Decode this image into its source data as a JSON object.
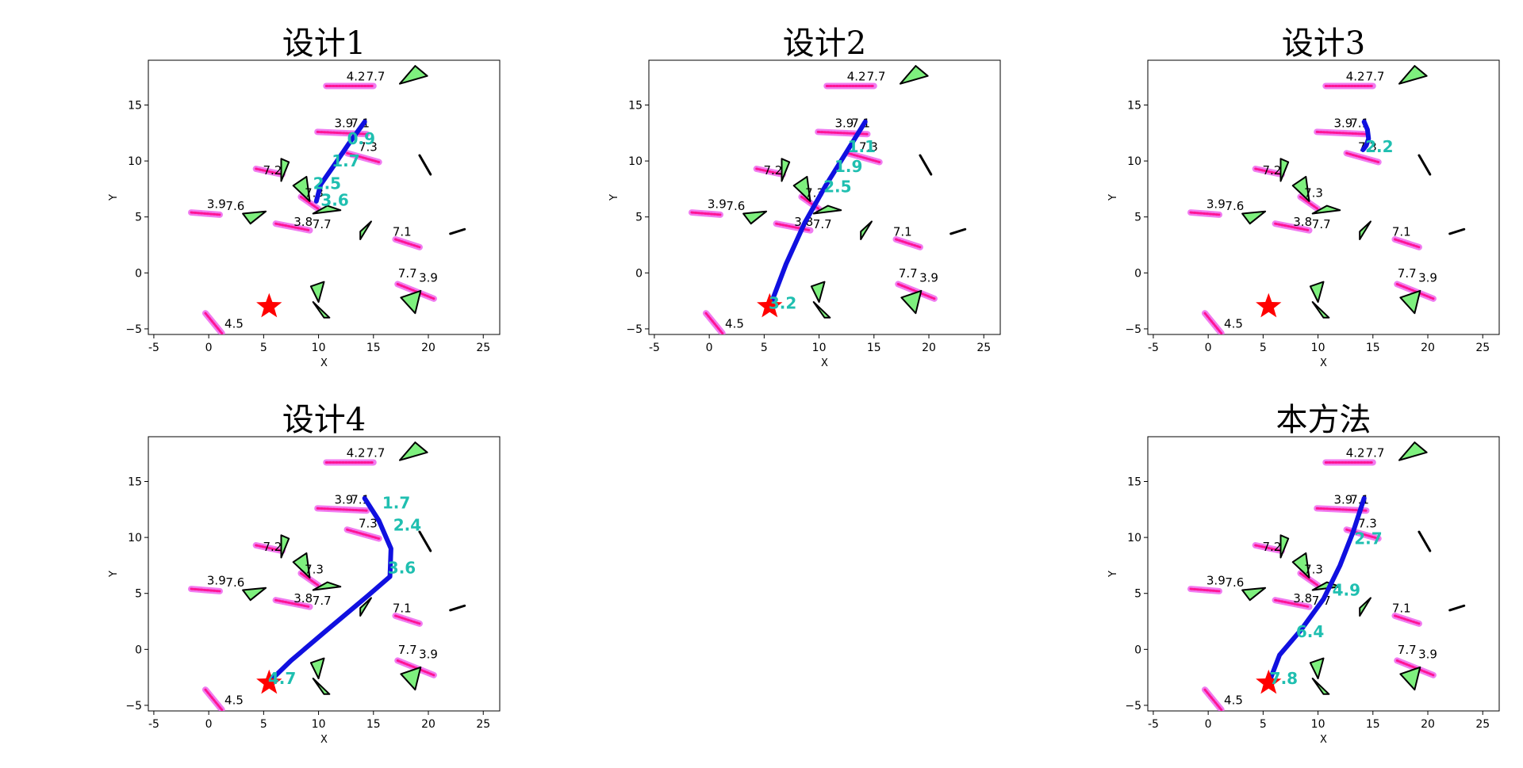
{
  "figure": {
    "panels": [
      {
        "title": "设计1",
        "xlabel": "X",
        "ylabel": "Y"
      },
      {
        "title": "设计2",
        "xlabel": "X",
        "ylabel": "Y"
      },
      {
        "title": "设计3",
        "xlabel": "X",
        "ylabel": "Y"
      },
      {
        "title": "设计4",
        "xlabel": "X",
        "ylabel": "Y"
      },
      {
        "title": "本方法",
        "xlabel": "X",
        "ylabel": "Y"
      }
    ]
  },
  "colors": {
    "trajectory": "#1010e0",
    "goal_star": "#ff0000",
    "obstacle_fill": "#7ef07e",
    "pedestrian_path": "#ff1493",
    "pedestrian_halo": "#ee66ee",
    "speed_label": "#1fbfb0"
  },
  "chart_data": [
    {
      "type": "scatter",
      "title": "设计1",
      "xlabel": "X",
      "ylabel": "Y",
      "xlim": [
        -5.5,
        26.5
      ],
      "ylim": [
        -5.5,
        19.0
      ],
      "xticks": [
        -5,
        0,
        5,
        10,
        15,
        20,
        25
      ],
      "yticks": [
        -5,
        0,
        5,
        10,
        15
      ],
      "goal": [
        5.5,
        -3.0
      ],
      "trajectory": [
        [
          14.2,
          13.5
        ],
        [
          12.8,
          11.6
        ],
        [
          11.4,
          9.6
        ],
        [
          10.2,
          7.9
        ],
        [
          9.8,
          6.4
        ]
      ],
      "speed_labels": [
        {
          "x": 12.6,
          "y": 11.5,
          "text": "0.9"
        },
        {
          "x": 11.2,
          "y": 9.5,
          "text": "1.7"
        },
        {
          "x": 9.5,
          "y": 7.5,
          "text": "2.5"
        },
        {
          "x": 10.2,
          "y": 6.0,
          "text": "3.6"
        }
      ]
    },
    {
      "type": "scatter",
      "title": "设计2",
      "xlabel": "X",
      "ylabel": "Y",
      "xlim": [
        -5.5,
        26.5
      ],
      "ylim": [
        -5.5,
        19.0
      ],
      "xticks": [
        -5,
        0,
        5,
        10,
        15,
        20,
        25
      ],
      "yticks": [
        -5,
        0,
        5,
        10,
        15
      ],
      "goal": [
        5.5,
        -3.0
      ],
      "trajectory": [
        [
          14.2,
          13.5
        ],
        [
          12.5,
          10.8
        ],
        [
          10.6,
          7.8
        ],
        [
          8.7,
          4.5
        ],
        [
          7.0,
          0.8
        ],
        [
          5.6,
          -2.8
        ]
      ],
      "speed_labels": [
        {
          "x": 12.6,
          "y": 10.8,
          "text": "1.1"
        },
        {
          "x": 11.4,
          "y": 9.0,
          "text": "1.9"
        },
        {
          "x": 10.4,
          "y": 7.2,
          "text": "2.5"
        },
        {
          "x": 5.4,
          "y": -3.2,
          "text": "3.2"
        }
      ]
    },
    {
      "type": "scatter",
      "title": "设计3",
      "xlabel": "X",
      "ylabel": "Y",
      "xlim": [
        -5.5,
        26.5
      ],
      "ylim": [
        -5.5,
        19.0
      ],
      "xticks": [
        -5,
        0,
        5,
        10,
        15,
        20,
        25
      ],
      "yticks": [
        -5,
        0,
        5,
        10,
        15
      ],
      "goal": [
        5.5,
        -3.0
      ],
      "trajectory": [
        [
          14.2,
          13.5
        ],
        [
          14.5,
          12.8
        ],
        [
          14.6,
          12.0
        ],
        [
          14.4,
          11.4
        ],
        [
          14.1,
          11.0
        ]
      ],
      "speed_labels": [
        {
          "x": 14.3,
          "y": 10.8,
          "text": "2.2"
        }
      ]
    },
    {
      "type": "scatter",
      "title": "设计4",
      "xlabel": "X",
      "ylabel": "Y",
      "xlim": [
        -5.5,
        26.5
      ],
      "ylim": [
        -5.5,
        19.0
      ],
      "xticks": [
        -5,
        0,
        5,
        10,
        15,
        20,
        25
      ],
      "yticks": [
        -5,
        0,
        5,
        10,
        15
      ],
      "goal": [
        5.5,
        -3.0
      ],
      "trajectory": [
        [
          14.2,
          13.5
        ],
        [
          15.5,
          11.5
        ],
        [
          16.6,
          9.0
        ],
        [
          16.5,
          6.5
        ],
        [
          14.5,
          4.8
        ],
        [
          10.5,
          1.5
        ],
        [
          7.5,
          -1.0
        ],
        [
          5.6,
          -2.8
        ]
      ],
      "speed_labels": [
        {
          "x": 15.8,
          "y": 12.6,
          "text": "1.7"
        },
        {
          "x": 16.8,
          "y": 10.6,
          "text": "2.4"
        },
        {
          "x": 16.3,
          "y": 6.8,
          "text": "3.6"
        },
        {
          "x": 5.4,
          "y": -3.1,
          "text": "4.7"
        }
      ]
    },
    {
      "type": "scatter",
      "title": "本方法",
      "xlabel": "X",
      "ylabel": "Y",
      "xlim": [
        -5.5,
        26.5
      ],
      "ylim": [
        -5.5,
        19.0
      ],
      "xticks": [
        -5,
        0,
        5,
        10,
        15,
        20,
        25
      ],
      "yticks": [
        -5,
        0,
        5,
        10,
        15
      ],
      "goal": [
        5.5,
        -3.0
      ],
      "trajectory": [
        [
          14.2,
          13.5
        ],
        [
          13.2,
          10.5
        ],
        [
          12.0,
          7.5
        ],
        [
          10.5,
          4.5
        ],
        [
          8.5,
          1.8
        ],
        [
          6.5,
          -0.5
        ],
        [
          5.6,
          -2.8
        ]
      ],
      "speed_labels": [
        {
          "x": 13.3,
          "y": 9.4,
          "text": "2.7"
        },
        {
          "x": 11.3,
          "y": 4.8,
          "text": "4.9"
        },
        {
          "x": 8.0,
          "y": 1.1,
          "text": "6.4"
        },
        {
          "x": 5.6,
          "y": -3.1,
          "text": "7.8"
        }
      ]
    }
  ],
  "scene": {
    "pedestrians": [
      {
        "from": [
          10.7,
          16.7
        ],
        "to": [
          15.0,
          16.7
        ],
        "labels": [
          {
            "x": 13.4,
            "y": 17.2,
            "text": "4.2"
          },
          {
            "x": 15.2,
            "y": 17.2,
            "text": "7.7"
          }
        ]
      },
      {
        "from": [
          9.9,
          12.6
        ],
        "to": [
          14.4,
          12.4
        ],
        "labels": [
          {
            "x": 12.3,
            "y": 13.0,
            "text": "3.9"
          },
          {
            "x": 13.8,
            "y": 13.0,
            "text": "7.1"
          }
        ]
      },
      {
        "from": [
          12.6,
          10.7
        ],
        "to": [
          15.5,
          9.9
        ],
        "labels": [
          {
            "x": 14.5,
            "y": 10.9,
            "text": "7.3"
          }
        ]
      },
      {
        "from": [
          4.3,
          9.3
        ],
        "to": [
          6.7,
          8.8
        ],
        "labels": [
          {
            "x": 5.8,
            "y": 8.8,
            "text": "7.2"
          }
        ]
      },
      {
        "from": [
          8.4,
          6.8
        ],
        "to": [
          10.0,
          5.7
        ],
        "labels": [
          {
            "x": 9.6,
            "y": 6.8,
            "text": "7.3"
          }
        ]
      },
      {
        "from": [
          -1.6,
          5.4
        ],
        "to": [
          1.0,
          5.2
        ],
        "labels": [
          {
            "x": 0.7,
            "y": 5.8,
            "text": "3.9"
          },
          {
            "x": 2.4,
            "y": 5.6,
            "text": "7.6"
          }
        ]
      },
      {
        "from": [
          6.1,
          4.4
        ],
        "to": [
          9.2,
          3.8
        ],
        "labels": [
          {
            "x": 8.6,
            "y": 4.2,
            "text": "3.8"
          },
          {
            "x": 10.3,
            "y": 4.0,
            "text": "7.7"
          }
        ]
      },
      {
        "from": [
          17.0,
          3.0
        ],
        "to": [
          19.2,
          2.3
        ],
        "labels": [
          {
            "x": 17.6,
            "y": 3.3,
            "text": "7.1"
          }
        ]
      },
      {
        "from": [
          17.2,
          -1.0
        ],
        "to": [
          20.5,
          -2.3
        ],
        "labels": [
          {
            "x": 18.1,
            "y": -0.4,
            "text": "7.7"
          },
          {
            "x": 20.0,
            "y": -0.8,
            "text": "3.9"
          }
        ]
      },
      {
        "from": [
          -0.3,
          -3.6
        ],
        "to": [
          1.2,
          -5.4
        ],
        "labels": [
          {
            "x": 2.3,
            "y": -4.9,
            "text": "4.5"
          }
        ]
      }
    ],
    "obstacles": [
      [
        [
          17.4,
          16.9
        ],
        [
          18.8,
          18.5
        ],
        [
          19.9,
          17.6
        ]
      ],
      [
        [
          6.6,
          10.2
        ],
        [
          7.3,
          9.9
        ],
        [
          6.6,
          8.2
        ]
      ],
      [
        [
          7.7,
          7.8
        ],
        [
          8.9,
          8.6
        ],
        [
          9.2,
          6.4
        ]
      ],
      [
        [
          3.1,
          5.3
        ],
        [
          5.2,
          5.5
        ],
        [
          3.8,
          4.4
        ]
      ],
      [
        [
          13.8,
          3.7
        ],
        [
          14.8,
          4.6
        ],
        [
          13.8,
          3.0
        ]
      ],
      [
        [
          9.5,
          5.3
        ],
        [
          10.8,
          6.0
        ],
        [
          12.0,
          5.6
        ]
      ],
      [
        [
          9.3,
          -1.2
        ],
        [
          10.5,
          -0.8
        ],
        [
          10.0,
          -2.6
        ]
      ],
      [
        [
          9.5,
          -2.6
        ],
        [
          10.5,
          -4.0
        ],
        [
          11.0,
          -4.0
        ]
      ],
      [
        [
          17.5,
          -2.2
        ],
        [
          19.3,
          -1.6
        ],
        [
          18.8,
          -3.6
        ]
      ]
    ],
    "obstacle_panel_offsets": [
      [
        0,
        0
      ],
      [
        0,
        0
      ],
      [
        0,
        0
      ],
      [
        0,
        0
      ],
      [
        0,
        0
      ]
    ],
    "sticks": [
      {
        "from": [
          19.2,
          10.5
        ],
        "to": [
          20.2,
          8.8
        ]
      },
      {
        "from": [
          22.0,
          3.5
        ],
        "to": [
          23.3,
          3.9
        ]
      }
    ]
  }
}
